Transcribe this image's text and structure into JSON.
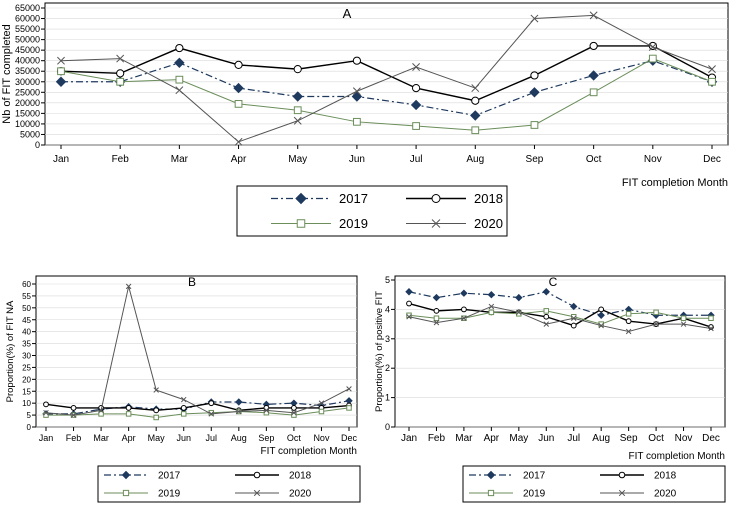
{
  "legend_colors": {
    "2017": "#1f3a5f",
    "2018": "#000000",
    "2019": "#6b8e5a",
    "2020": "#555555"
  },
  "chart_data": [
    {
      "type": "line",
      "title": "A",
      "xlabel": "FIT completion Month",
      "ylabel": "Nb of FIT completed",
      "categories": [
        "Jan",
        "Feb",
        "Mar",
        "Apr",
        "May",
        "Jun",
        "Jul",
        "Aug",
        "Sep",
        "Oct",
        "Nov",
        "Dec"
      ],
      "ylim": [
        0,
        65000
      ],
      "yticks": [
        0,
        5000,
        10000,
        15000,
        20000,
        25000,
        30000,
        35000,
        40000,
        45000,
        50000,
        55000,
        60000,
        65000
      ],
      "ytick_labels": [
        "0",
        "5000",
        "10000",
        "15000",
        "20000",
        "25000",
        "30000",
        "35000",
        "40000",
        "45000",
        "50000",
        "55000",
        "60000",
        "65000"
      ],
      "legend": [
        "2017",
        "2018",
        "2019",
        "2020"
      ],
      "series": [
        {
          "name": "2017",
          "values": [
            30000,
            30000,
            39000,
            27000,
            23000,
            23000,
            19000,
            14000,
            25000,
            33000,
            40000,
            30000
          ]
        },
        {
          "name": "2018",
          "values": [
            35000,
            34000,
            46000,
            38000,
            36000,
            40000,
            27000,
            21000,
            33000,
            47000,
            47000,
            32000
          ]
        },
        {
          "name": "2019",
          "values": [
            35000,
            30000,
            31000,
            19500,
            16500,
            11000,
            9000,
            7000,
            9500,
            25000,
            41000,
            30000
          ]
        },
        {
          "name": "2020",
          "values": [
            40000,
            41000,
            26000,
            1500,
            11500,
            25500,
            37000,
            27000,
            60000,
            61500,
            46500,
            36000
          ]
        }
      ]
    },
    {
      "type": "line",
      "title": "B",
      "xlabel": "FIT completion Month",
      "ylabel": "Proportion(%) of FIT NA",
      "categories": [
        "Jan",
        "Feb",
        "Mar",
        "Apr",
        "May",
        "Jun",
        "Jul",
        "Aug",
        "Sep",
        "Oct",
        "Nov",
        "Dec"
      ],
      "ylim": [
        0,
        60
      ],
      "yticks": [
        0,
        5,
        10,
        15,
        20,
        25,
        30,
        35,
        40,
        45,
        50,
        55,
        60
      ],
      "ytick_labels": [
        "0",
        "5",
        "10",
        "15",
        "20",
        "25",
        "30",
        "35",
        "40",
        "45",
        "50",
        "55",
        "60"
      ],
      "legend": [
        "2017",
        "2018",
        "2019",
        "2020"
      ],
      "series": [
        {
          "name": "2017",
          "values": [
            5.5,
            5.5,
            7.5,
            8.5,
            7.5,
            7.5,
            10.5,
            10.5,
            9.5,
            10,
            9,
            11
          ]
        },
        {
          "name": "2018",
          "values": [
            9.5,
            8,
            8,
            8,
            7,
            8,
            10,
            7,
            8,
            8,
            8,
            9
          ]
        },
        {
          "name": "2019",
          "values": [
            5,
            5,
            5.5,
            5.5,
            4,
            5.5,
            6,
            6.5,
            6,
            5,
            6.5,
            8
          ]
        },
        {
          "name": "2020",
          "values": [
            6,
            5,
            7,
            59,
            15.5,
            11.5,
            5.5,
            6.5,
            7,
            6,
            10,
            16
          ]
        }
      ]
    },
    {
      "type": "line",
      "title": "C",
      "xlabel": "FIT completion Month",
      "ylabel": "Proportion(%) of positive FIT",
      "categories": [
        "Jan",
        "Feb",
        "Mar",
        "Apr",
        "May",
        "Jun",
        "Jul",
        "Aug",
        "Sep",
        "Oct",
        "Nov",
        "Dec"
      ],
      "ylim": [
        0,
        5
      ],
      "yticks": [
        0,
        1,
        2,
        3,
        4,
        5
      ],
      "ytick_labels": [
        "0",
        "1",
        "2",
        "3",
        "4",
        "5"
      ],
      "legend": [
        "2017",
        "2018",
        "2019",
        "2020"
      ],
      "series": [
        {
          "name": "2017",
          "values": [
            4.6,
            4.4,
            4.55,
            4.5,
            4.4,
            4.6,
            4.1,
            3.8,
            4.0,
            3.8,
            3.8,
            3.8
          ]
        },
        {
          "name": "2018",
          "values": [
            4.2,
            3.95,
            4.0,
            3.9,
            3.9,
            3.75,
            3.45,
            4.0,
            3.6,
            3.5,
            3.7,
            3.4
          ]
        },
        {
          "name": "2019",
          "values": [
            3.8,
            3.7,
            3.7,
            3.9,
            3.85,
            3.95,
            3.75,
            3.5,
            3.85,
            3.9,
            3.7,
            3.7
          ]
        },
        {
          "name": "2020",
          "values": [
            3.75,
            3.55,
            3.7,
            4.1,
            3.9,
            3.5,
            3.7,
            3.45,
            3.25,
            3.5,
            3.5,
            3.35
          ]
        }
      ]
    }
  ]
}
